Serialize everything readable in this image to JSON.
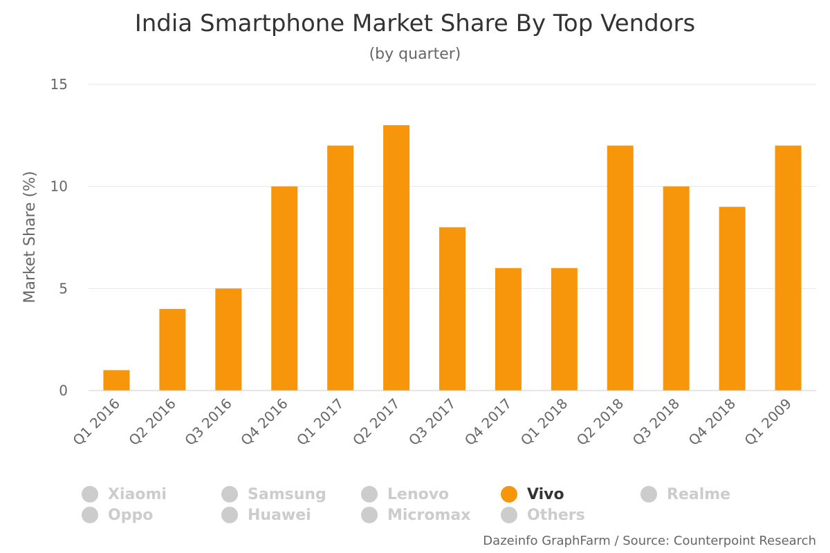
{
  "chart_data": {
    "type": "bar",
    "title": "India Smartphone Market Share By Top Vendors",
    "subtitle": "(by quarter)",
    "ylabel": "Market Share (%)",
    "xlabel": "",
    "ylim": [
      0,
      15
    ],
    "yticks": [
      "0",
      "5",
      "10",
      "15"
    ],
    "categories": [
      "Q1 2016",
      "Q2 2016",
      "Q3 2016",
      "Q4 2016",
      "Q1 2017",
      "Q2 2017",
      "Q3 2017",
      "Q4 2017",
      "Q1 2018",
      "Q2 2018",
      "Q3 2018",
      "Q4 2018",
      "Q1 2009"
    ],
    "series": [
      {
        "name": "Vivo",
        "color": "#f7960a",
        "values": [
          1,
          4,
          5,
          10,
          12,
          13,
          8,
          6,
          6,
          12,
          10,
          9,
          12
        ]
      }
    ],
    "grid": true,
    "legend_position": "bottom",
    "legend": [
      {
        "label": "Xiaomi",
        "active": false,
        "color": "#cccccc"
      },
      {
        "label": "Samsung",
        "active": false,
        "color": "#cccccc"
      },
      {
        "label": "Lenovo",
        "active": false,
        "color": "#cccccc"
      },
      {
        "label": "Vivo",
        "active": true,
        "color": "#f7960a"
      },
      {
        "label": "Realme",
        "active": false,
        "color": "#cccccc"
      },
      {
        "label": "Oppo",
        "active": false,
        "color": "#cccccc"
      },
      {
        "label": "Huawei",
        "active": false,
        "color": "#cccccc"
      },
      {
        "label": "Micromax",
        "active": false,
        "color": "#cccccc"
      },
      {
        "label": "Others",
        "active": false,
        "color": "#cccccc"
      }
    ]
  },
  "credits": "Dazeinfo GraphFarm / Source: Counterpoint Research"
}
